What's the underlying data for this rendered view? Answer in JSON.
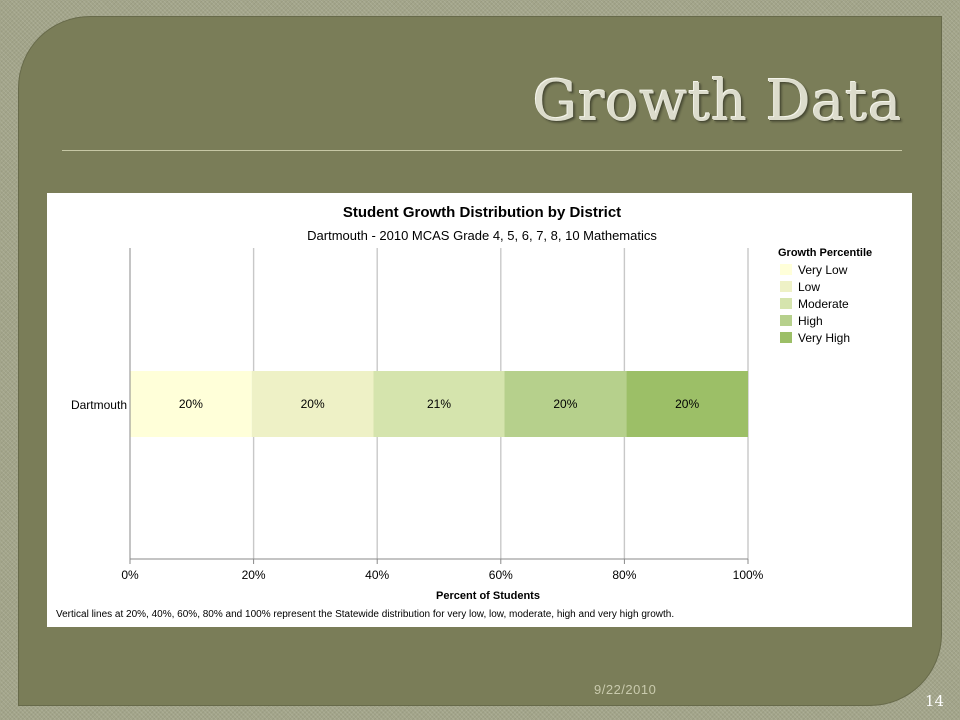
{
  "slide": {
    "title": "Growth Data",
    "date": "9/22/2010",
    "number": "14"
  },
  "chart_data": {
    "type": "bar",
    "orientation": "horizontal-stacked",
    "title": "Student Growth Distribution by District",
    "subtitle": "Dartmouth - 2010 MCAS Grade 4, 5, 6, 7, 8, 10 Mathematics",
    "xlabel": "Percent of Students",
    "ylabel": "",
    "xlim": [
      0,
      100
    ],
    "x_ticks": [
      "0%",
      "20%",
      "40%",
      "60%",
      "80%",
      "100%"
    ],
    "grid": true,
    "categories": [
      "Dartmouth"
    ],
    "series": [
      {
        "name": "Very Low",
        "values": [
          19.7
        ],
        "label": "20%",
        "color": "#ffffd9"
      },
      {
        "name": "Low",
        "values": [
          19.7
        ],
        "label": "20%",
        "color": "#eef1c6"
      },
      {
        "name": "Moderate",
        "values": [
          21.2
        ],
        "label": "21%",
        "color": "#d5e4ad"
      },
      {
        "name": "High",
        "values": [
          19.7
        ],
        "label": "20%",
        "color": "#b6d08c"
      },
      {
        "name": "Very High",
        "values": [
          19.7
        ],
        "label": "20%",
        "color": "#9cbf67"
      }
    ],
    "legend_title": "Growth Percentile",
    "legend_position": "top-right",
    "footnote": "Vertical lines at 20%, 40%, 60%, 80% and 100% represent the Statewide distribution for very low, low, moderate, high and very high growth."
  }
}
